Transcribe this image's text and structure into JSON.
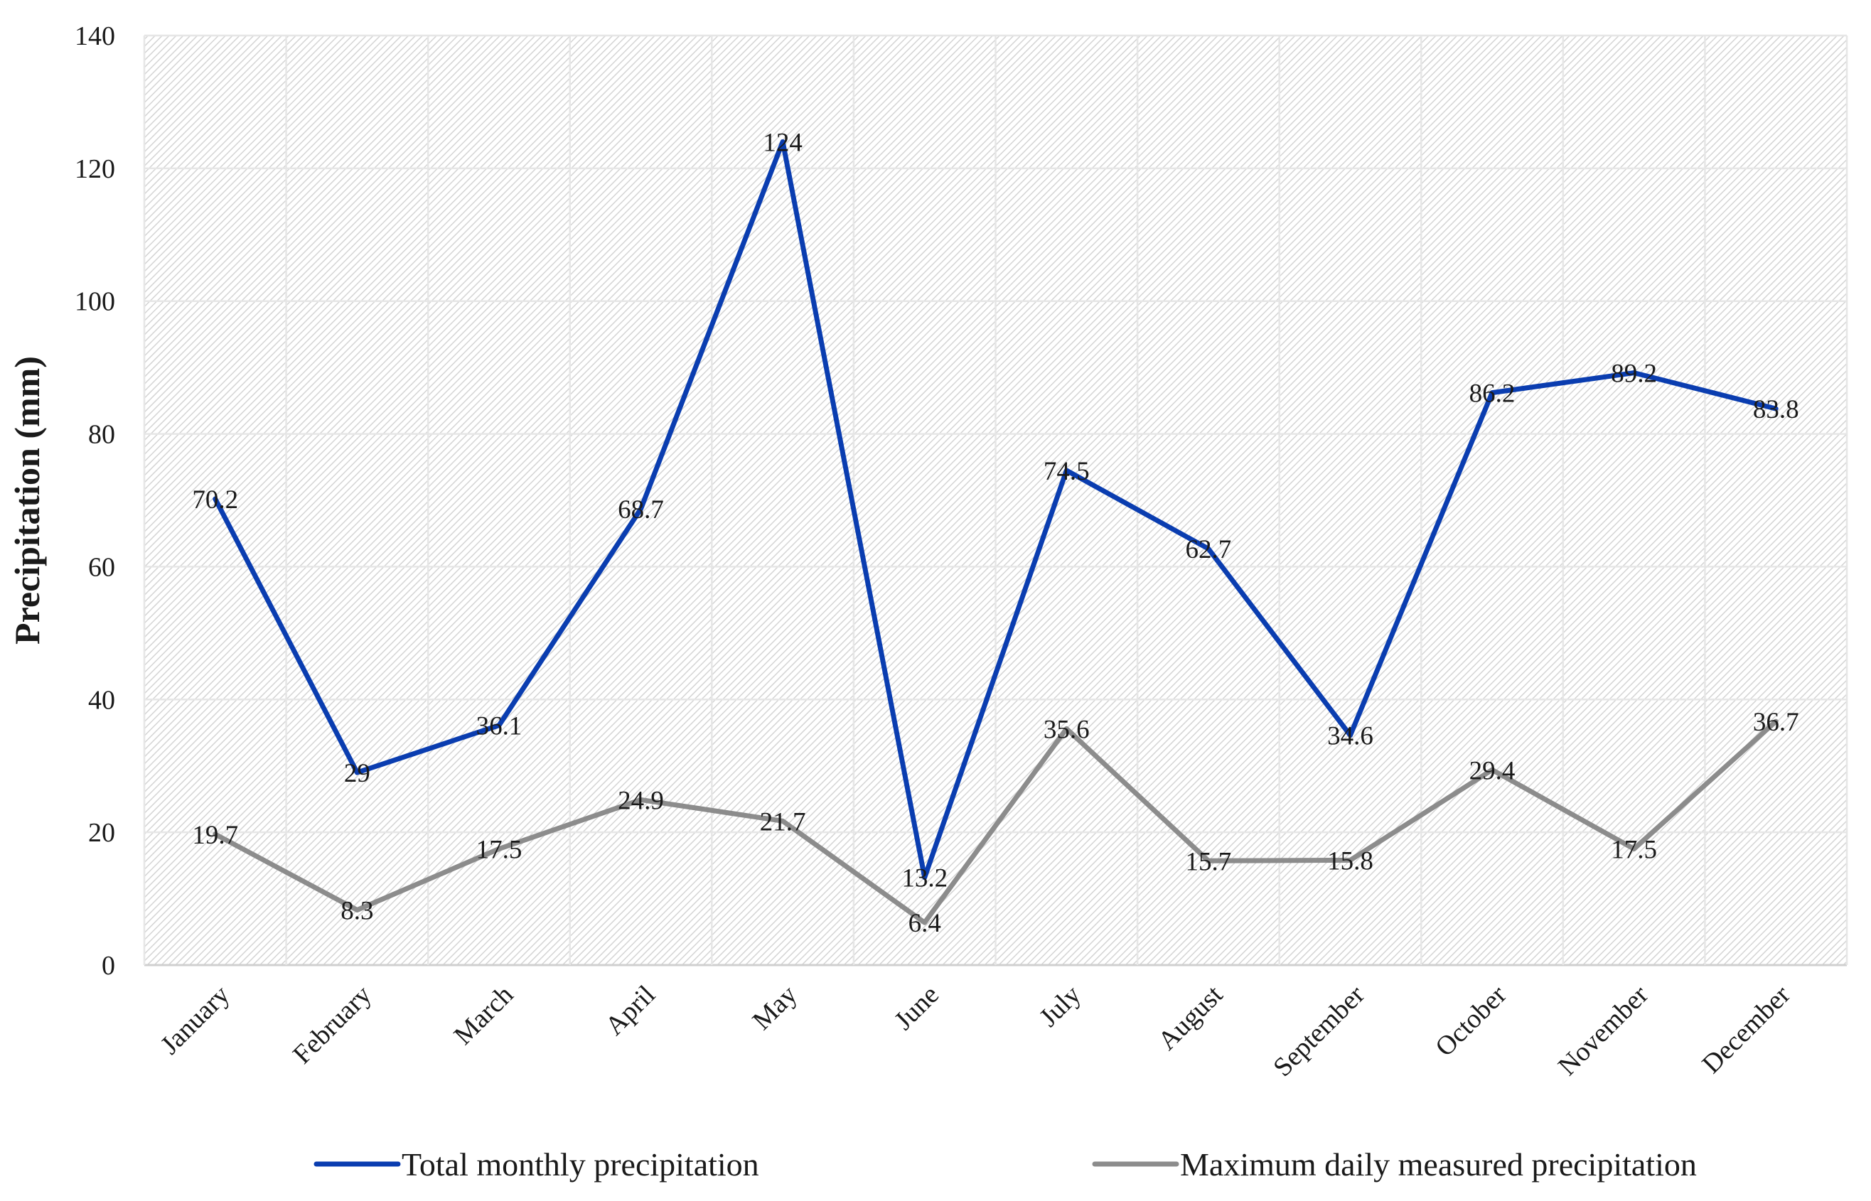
{
  "chart_data": {
    "type": "line",
    "title": "",
    "xlabel": "",
    "ylabel": "Precipitation (mm)",
    "ylim": [
      0,
      140
    ],
    "yticks": [
      0,
      20,
      40,
      60,
      80,
      100,
      120,
      140
    ],
    "grid": true,
    "legend_position": "bottom",
    "categories": [
      "January",
      "February",
      "March",
      "April",
      "May",
      "June",
      "July",
      "August",
      "September",
      "October",
      "November",
      "December"
    ],
    "series": [
      {
        "name": "Total monthly precipitation",
        "color": "#0a3db0",
        "values": [
          70.2,
          29,
          36.1,
          68.7,
          124,
          13.2,
          74.5,
          62.7,
          34.6,
          86.2,
          89.2,
          83.8
        ],
        "labels": [
          "70.2",
          "29",
          "36.1",
          "68.7",
          "124",
          "13.2",
          "74.5",
          "62.7",
          "34.6",
          "86.2",
          "89.2",
          "83.8"
        ]
      },
      {
        "name": "Maximum daily measured precipitation",
        "color": "#8c8c8c",
        "values": [
          19.7,
          8.3,
          17.5,
          24.9,
          21.7,
          6.4,
          35.6,
          15.7,
          15.8,
          29.4,
          17.5,
          36.7
        ],
        "labels": [
          "19.7",
          "8.3",
          "17.5",
          "24.9",
          "21.7",
          "6.4",
          "35.6",
          "15.7",
          "15.8",
          "29.4",
          "17.5",
          "36.7"
        ]
      }
    ]
  }
}
